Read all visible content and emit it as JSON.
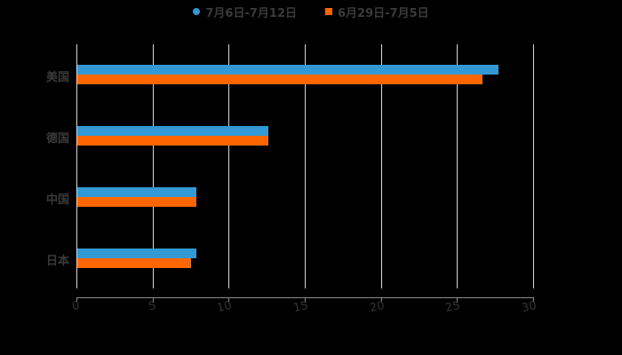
{
  "legend": {
    "items": [
      {
        "label": "7月6日-7月12日",
        "color": "#3399d4",
        "marker": "circle"
      },
      {
        "label": "6月29日-7月5日",
        "color": "#ff6600",
        "marker": "square"
      }
    ]
  },
  "axis": {
    "x_ticks": [
      "0",
      "5",
      "10",
      "15",
      "20",
      "25",
      "30"
    ]
  },
  "categories": [
    "美国",
    "德国",
    "中国",
    "日本"
  ],
  "chart_data": {
    "type": "bar",
    "orientation": "horizontal",
    "title": "",
    "categories": [
      "美国",
      "德国",
      "中国",
      "日本"
    ],
    "series": [
      {
        "name": "7月6日-7月12日",
        "color": "#3399d4",
        "values": [
          27.7,
          12.6,
          7.9,
          7.9
        ]
      },
      {
        "name": "6月29日-7月5日",
        "color": "#ff6600",
        "values": [
          26.7,
          12.6,
          7.9,
          7.5
        ]
      }
    ],
    "xlabel": "",
    "ylabel": "",
    "xlim": [
      0,
      30
    ],
    "x_ticks": [
      0,
      5,
      10,
      15,
      20,
      25,
      30
    ],
    "grid": "vertical",
    "legend_position": "top"
  }
}
